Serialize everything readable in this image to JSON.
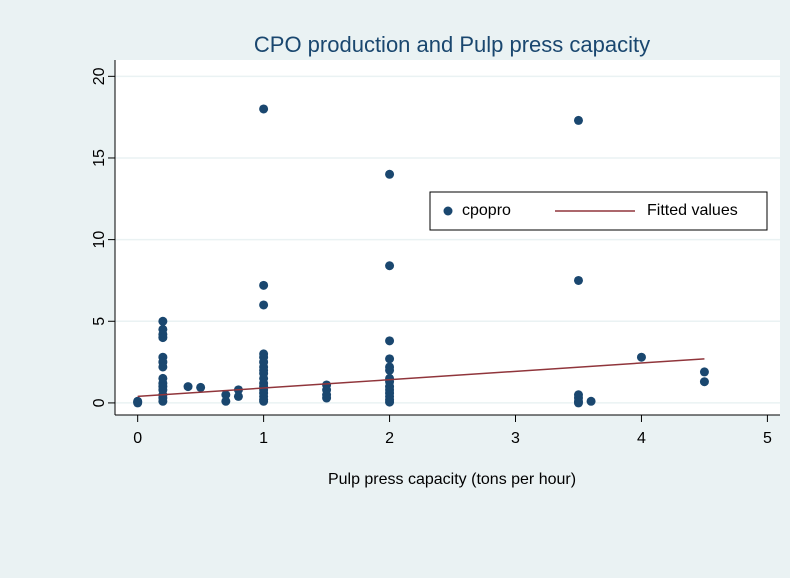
{
  "chart_data": {
    "type": "scatter",
    "title": "CPO production and Pulp press capacity",
    "x_label": "Pulp press capacity (tons per hour)",
    "xlim": [
      -0.18,
      5.1
    ],
    "ylim": [
      -0.74,
      21
    ],
    "xticks": [
      0,
      1,
      2,
      3,
      4,
      5
    ],
    "yticks": [
      0,
      5,
      10,
      15,
      20
    ],
    "grid": true,
    "legend_position": "upper right",
    "series": [
      {
        "name": "cpopro",
        "type": "scatter",
        "color": "#1a476f",
        "x": [
          0,
          0,
          0,
          0.2,
          0.2,
          0.2,
          0.2,
          0.2,
          0.2,
          0.2,
          0.2,
          0.2,
          0.2,
          0.2,
          0.2,
          0.2,
          0.2,
          0.4,
          0.5,
          0.7,
          0.7,
          0.8,
          0.8,
          1,
          1,
          1,
          1,
          1,
          1,
          1,
          1,
          1,
          1,
          1,
          1,
          1,
          1,
          1,
          1,
          1,
          1.5,
          1.5,
          1.5,
          1.5,
          2,
          2,
          2,
          2,
          2,
          2,
          2,
          2,
          2,
          2,
          2,
          2,
          2,
          2,
          3.5,
          3.5,
          3.5,
          3.5,
          3.5,
          3.5,
          3.6,
          4,
          4.5,
          4.5
        ],
        "values": [
          0,
          0.05,
          0.1,
          5,
          4.5,
          4.2,
          4,
          2.8,
          2.5,
          2.2,
          1.5,
          1.2,
          1,
          0.8,
          0.5,
          0.3,
          0.1,
          1,
          0.95,
          0.5,
          0.1,
          0.8,
          0.4,
          18,
          7.2,
          6,
          3,
          2.8,
          2.5,
          2.2,
          2,
          1.8,
          1.5,
          1.2,
          1,
          0.8,
          0.6,
          0.4,
          0.2,
          0.1,
          1.1,
          0.8,
          0.5,
          0.3,
          14,
          8.4,
          3.8,
          2.7,
          2.2,
          2,
          1.5,
          1.3,
          1,
          0.8,
          0.6,
          0.4,
          0.2,
          0.05,
          17.3,
          7.5,
          0.5,
          0.3,
          0.1,
          0,
          0.1,
          2.8,
          1.9,
          1.3
        ]
      },
      {
        "name": "Fitted values",
        "type": "line",
        "color": "#90353b",
        "x": [
          0,
          4.5
        ],
        "values": [
          0.4,
          2.7
        ]
      }
    ]
  }
}
